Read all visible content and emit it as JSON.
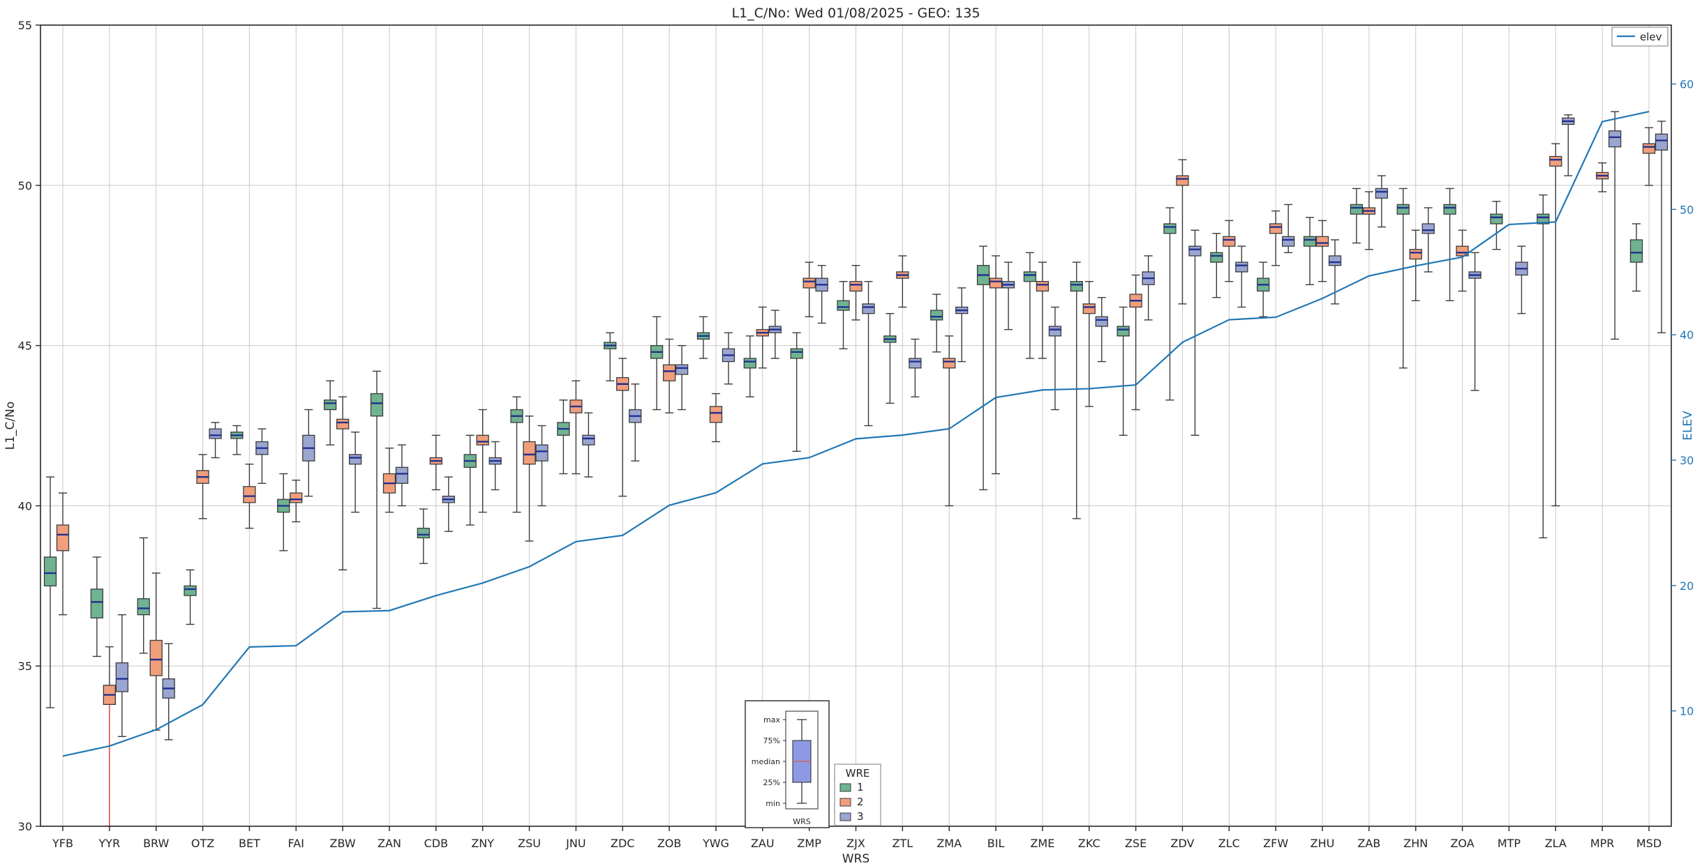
{
  "title": "L1_C/No: Wed 01/08/2025 - GEO: 135",
  "chart_data": {
    "type": "boxplot+line",
    "title": "L1_C/No: Wed 01/08/2025 - GEO: 135",
    "xlabel": "WRS",
    "ylabel_left": "L1_C/No",
    "ylabel_right": "ELEV",
    "ylim_left": [
      30,
      55
    ],
    "yticks_left": [
      30,
      35,
      40,
      45,
      50,
      55
    ],
    "ylim_right": [
      0.8,
      64.7
    ],
    "yticks_right": [
      10,
      20,
      30,
      40,
      50,
      60
    ],
    "grid": true,
    "legend_line": {
      "label": "elev"
    },
    "legend_box": {
      "title": "WRE",
      "entries": [
        {
          "label": "1",
          "color_key": "wre1"
        },
        {
          "label": "2",
          "color_key": "wre2"
        },
        {
          "label": "3",
          "color_key": "wre3"
        }
      ]
    },
    "inset_labels": {
      "max": "max",
      "q3": "75%",
      "median": "median",
      "q1": "25%",
      "min": "min",
      "xlabel": "WRS"
    },
    "colors": {
      "wre1": "#6fb390",
      "wre2": "#f09e7c",
      "wre3": "#9aa6d0",
      "edge": "#3b3b3b",
      "median": "#23308f",
      "elev_line": "#2077b4",
      "red_whisker": "#e23b32",
      "grid": "#c8c8c8",
      "axis": "#262626",
      "inset_box": "#8d9ae3",
      "inset_median": "#cf6456"
    },
    "box_format": [
      "wre",
      "whisker_low",
      "q1",
      "median",
      "q3",
      "whisker_high",
      "optional_red_lower_whisker"
    ],
    "stations": [
      {
        "name": "YFB",
        "boxes": [
          [
            1,
            33.7,
            37.5,
            37.9,
            38.4,
            40.9
          ],
          [
            2,
            36.6,
            38.6,
            39.1,
            39.4,
            40.4
          ]
        ]
      },
      {
        "name": "YYR",
        "boxes": [
          [
            1,
            35.3,
            36.5,
            37.0,
            37.4,
            38.4
          ],
          [
            2,
            30.0,
            33.8,
            34.1,
            34.4,
            35.6,
            "red"
          ],
          [
            3,
            32.8,
            34.2,
            34.6,
            35.1,
            36.6
          ]
        ]
      },
      {
        "name": "BRW",
        "boxes": [
          [
            1,
            35.4,
            36.6,
            36.8,
            37.1,
            39.0
          ],
          [
            2,
            33.0,
            34.7,
            35.2,
            35.8,
            37.9
          ],
          [
            3,
            32.7,
            34.0,
            34.3,
            34.6,
            35.7
          ]
        ]
      },
      {
        "name": "OTZ",
        "boxes": [
          [
            1,
            36.3,
            37.2,
            37.4,
            37.5,
            38.0
          ],
          [
            2,
            39.6,
            40.7,
            40.9,
            41.1,
            41.6
          ],
          [
            3,
            41.5,
            42.1,
            42.2,
            42.4,
            42.6
          ]
        ]
      },
      {
        "name": "BET",
        "boxes": [
          [
            1,
            41.6,
            42.1,
            42.2,
            42.3,
            42.5
          ],
          [
            2,
            39.3,
            40.1,
            40.3,
            40.6,
            41.3
          ],
          [
            3,
            40.7,
            41.6,
            41.8,
            42.0,
            42.4
          ]
        ]
      },
      {
        "name": "FAI",
        "boxes": [
          [
            1,
            38.6,
            39.8,
            40.0,
            40.2,
            41.0
          ],
          [
            2,
            39.5,
            40.1,
            40.2,
            40.4,
            40.8
          ],
          [
            3,
            40.3,
            41.4,
            41.8,
            42.2,
            43.0
          ]
        ]
      },
      {
        "name": "ZBW",
        "boxes": [
          [
            1,
            41.9,
            43.0,
            43.2,
            43.3,
            43.9
          ],
          [
            2,
            38.0,
            42.4,
            42.6,
            42.7,
            43.4
          ],
          [
            3,
            39.8,
            41.3,
            41.5,
            41.6,
            42.3
          ]
        ]
      },
      {
        "name": "ZAN",
        "boxes": [
          [
            1,
            36.8,
            42.8,
            43.2,
            43.5,
            44.2
          ],
          [
            2,
            39.8,
            40.4,
            40.7,
            41.0,
            41.8
          ],
          [
            3,
            40.0,
            40.7,
            41.0,
            41.2,
            41.9
          ]
        ]
      },
      {
        "name": "CDB",
        "boxes": [
          [
            1,
            38.2,
            39.0,
            39.1,
            39.3,
            39.9
          ],
          [
            2,
            40.5,
            41.3,
            41.4,
            41.5,
            42.2
          ],
          [
            3,
            39.2,
            40.1,
            40.2,
            40.3,
            40.9
          ]
        ]
      },
      {
        "name": "ZNY",
        "boxes": [
          [
            1,
            39.4,
            41.2,
            41.4,
            41.6,
            42.2
          ],
          [
            2,
            39.8,
            41.9,
            42.0,
            42.2,
            43.0
          ],
          [
            3,
            40.5,
            41.3,
            41.4,
            41.5,
            42.0
          ]
        ]
      },
      {
        "name": "ZSU",
        "boxes": [
          [
            1,
            39.8,
            42.6,
            42.8,
            43.0,
            43.4
          ],
          [
            2,
            38.9,
            41.3,
            41.6,
            42.0,
            42.8
          ],
          [
            3,
            40.0,
            41.4,
            41.7,
            41.9,
            42.5
          ]
        ]
      },
      {
        "name": "JNU",
        "boxes": [
          [
            1,
            41.0,
            42.2,
            42.4,
            42.6,
            43.3
          ],
          [
            2,
            41.0,
            42.9,
            43.1,
            43.3,
            43.9
          ],
          [
            3,
            40.9,
            41.9,
            42.1,
            42.2,
            42.9
          ]
        ]
      },
      {
        "name": "ZDC",
        "boxes": [
          [
            1,
            43.9,
            44.9,
            45.0,
            45.1,
            45.4
          ],
          [
            2,
            40.3,
            43.6,
            43.8,
            44.0,
            44.6
          ],
          [
            3,
            41.4,
            42.6,
            42.8,
            43.0,
            43.8
          ]
        ]
      },
      {
        "name": "ZOB",
        "boxes": [
          [
            1,
            43.0,
            44.6,
            44.8,
            45.0,
            45.9
          ],
          [
            2,
            42.9,
            43.9,
            44.2,
            44.4,
            45.2
          ],
          [
            3,
            43.0,
            44.1,
            44.3,
            44.4,
            45.0
          ]
        ]
      },
      {
        "name": "YWG",
        "boxes": [
          [
            1,
            44.6,
            45.2,
            45.3,
            45.4,
            45.9
          ],
          [
            2,
            42.0,
            42.6,
            42.9,
            43.1,
            43.5
          ],
          [
            3,
            43.8,
            44.5,
            44.7,
            44.9,
            45.4
          ]
        ]
      },
      {
        "name": "ZAU",
        "boxes": [
          [
            1,
            43.4,
            44.3,
            44.5,
            44.6,
            45.3
          ],
          [
            2,
            44.3,
            45.3,
            45.4,
            45.5,
            46.2
          ],
          [
            3,
            44.6,
            45.4,
            45.5,
            45.6,
            46.1
          ]
        ]
      },
      {
        "name": "ZMP",
        "boxes": [
          [
            1,
            41.7,
            44.6,
            44.8,
            44.9,
            45.4
          ],
          [
            2,
            45.9,
            46.8,
            47.0,
            47.1,
            47.6
          ],
          [
            3,
            45.7,
            46.7,
            46.9,
            47.1,
            47.5
          ]
        ]
      },
      {
        "name": "ZJX",
        "boxes": [
          [
            1,
            44.9,
            46.1,
            46.2,
            46.4,
            47.0
          ],
          [
            2,
            45.8,
            46.7,
            46.9,
            47.0,
            47.5
          ],
          [
            3,
            42.5,
            46.0,
            46.2,
            46.3,
            47.0
          ]
        ]
      },
      {
        "name": "ZTL",
        "boxes": [
          [
            1,
            43.2,
            45.1,
            45.2,
            45.3,
            46.0
          ],
          [
            2,
            46.2,
            47.1,
            47.2,
            47.3,
            47.8
          ],
          [
            3,
            43.4,
            44.3,
            44.5,
            44.6,
            45.2
          ]
        ]
      },
      {
        "name": "ZMA",
        "boxes": [
          [
            1,
            44.8,
            45.8,
            45.9,
            46.1,
            46.6
          ],
          [
            2,
            40.0,
            44.3,
            44.5,
            44.6,
            45.3
          ],
          [
            3,
            44.5,
            46.0,
            46.1,
            46.2,
            46.8
          ]
        ]
      },
      {
        "name": "BIL",
        "boxes": [
          [
            1,
            40.5,
            46.9,
            47.2,
            47.5,
            48.1
          ],
          [
            2,
            41.0,
            46.8,
            47.0,
            47.1,
            47.8
          ],
          [
            3,
            45.5,
            46.8,
            46.9,
            47.0,
            47.6
          ]
        ]
      },
      {
        "name": "ZME",
        "boxes": [
          [
            1,
            44.6,
            47.0,
            47.2,
            47.3,
            47.9
          ],
          [
            2,
            44.6,
            46.7,
            46.9,
            47.0,
            47.6
          ],
          [
            3,
            43.0,
            45.3,
            45.5,
            45.6,
            46.2
          ]
        ]
      },
      {
        "name": "ZKC",
        "boxes": [
          [
            1,
            39.6,
            46.7,
            46.9,
            47.0,
            47.6
          ],
          [
            2,
            43.1,
            46.0,
            46.2,
            46.3,
            47.0
          ],
          [
            3,
            44.5,
            45.6,
            45.8,
            45.9,
            46.5
          ]
        ]
      },
      {
        "name": "ZSE",
        "boxes": [
          [
            1,
            42.2,
            45.3,
            45.5,
            45.6,
            46.2
          ],
          [
            2,
            43.0,
            46.2,
            46.4,
            46.6,
            47.2
          ],
          [
            3,
            45.8,
            46.9,
            47.1,
            47.3,
            47.8
          ]
        ]
      },
      {
        "name": "ZDV",
        "boxes": [
          [
            1,
            43.3,
            48.5,
            48.7,
            48.8,
            49.3
          ],
          [
            2,
            46.3,
            50.0,
            50.2,
            50.3,
            50.8
          ],
          [
            3,
            42.2,
            47.8,
            48.0,
            48.1,
            48.6
          ]
        ]
      },
      {
        "name": "ZLC",
        "boxes": [
          [
            1,
            46.5,
            47.6,
            47.8,
            47.9,
            48.5
          ],
          [
            2,
            47.0,
            48.1,
            48.3,
            48.4,
            48.9
          ],
          [
            3,
            46.2,
            47.3,
            47.5,
            47.6,
            48.1
          ]
        ]
      },
      {
        "name": "ZFW",
        "boxes": [
          [
            1,
            45.9,
            46.7,
            46.9,
            47.1,
            47.6
          ],
          [
            2,
            47.5,
            48.5,
            48.7,
            48.8,
            49.2
          ],
          [
            3,
            47.9,
            48.1,
            48.3,
            48.4,
            49.4
          ]
        ]
      },
      {
        "name": "ZHU",
        "boxes": [
          [
            1,
            46.9,
            48.1,
            48.3,
            48.4,
            49.0
          ],
          [
            2,
            47.0,
            48.1,
            48.2,
            48.4,
            48.9
          ],
          [
            3,
            46.3,
            47.5,
            47.6,
            47.8,
            48.3
          ]
        ]
      },
      {
        "name": "ZAB",
        "boxes": [
          [
            1,
            48.2,
            49.1,
            49.3,
            49.4,
            49.9
          ],
          [
            2,
            48.0,
            49.1,
            49.2,
            49.3,
            49.8
          ],
          [
            3,
            48.7,
            49.6,
            49.8,
            49.9,
            50.3
          ]
        ]
      },
      {
        "name": "ZHN",
        "boxes": [
          [
            1,
            44.3,
            49.1,
            49.3,
            49.4,
            49.9
          ],
          [
            2,
            46.4,
            47.7,
            47.9,
            48.0,
            48.6
          ],
          [
            3,
            47.3,
            48.5,
            48.6,
            48.8,
            49.3
          ]
        ]
      },
      {
        "name": "ZOA",
        "boxes": [
          [
            1,
            46.4,
            49.1,
            49.3,
            49.4,
            49.9
          ],
          [
            2,
            46.7,
            47.8,
            47.9,
            48.1,
            48.6
          ],
          [
            3,
            43.6,
            47.1,
            47.2,
            47.3,
            47.9
          ]
        ]
      },
      {
        "name": "MTP",
        "boxes": [
          [
            1,
            48.0,
            48.8,
            49.0,
            49.1,
            49.5
          ],
          [
            3,
            46.0,
            47.2,
            47.4,
            47.6,
            48.1
          ]
        ]
      },
      {
        "name": "ZLA",
        "boxes": [
          [
            1,
            39.0,
            48.8,
            49.0,
            49.1,
            49.7
          ],
          [
            2,
            40.0,
            50.6,
            50.8,
            50.9,
            51.3
          ],
          [
            3,
            50.3,
            51.9,
            52.0,
            52.1,
            52.2
          ]
        ]
      },
      {
        "name": "MPR",
        "boxes": [
          [
            2,
            49.8,
            50.2,
            50.3,
            50.4,
            50.7
          ],
          [
            3,
            45.2,
            51.2,
            51.5,
            51.7,
            52.3
          ]
        ]
      },
      {
        "name": "MSD",
        "boxes": [
          [
            1,
            46.7,
            47.6,
            47.9,
            48.3,
            48.8
          ],
          [
            2,
            50.0,
            51.0,
            51.2,
            51.3,
            51.8
          ],
          [
            3,
            45.4,
            51.1,
            51.4,
            51.6,
            52.0
          ]
        ]
      }
    ],
    "elev": [
      6.4,
      7.2,
      8.5,
      10.5,
      15.1,
      15.2,
      17.9,
      18.0,
      19.2,
      20.2,
      21.5,
      23.5,
      24.0,
      26.4,
      27.4,
      29.7,
      30.2,
      31.7,
      32.0,
      32.5,
      35.0,
      35.6,
      35.7,
      36.0,
      39.4,
      41.2,
      41.4,
      42.9,
      44.7,
      45.5,
      46.2,
      48.8,
      49.0,
      57.0,
      57.8
    ]
  }
}
